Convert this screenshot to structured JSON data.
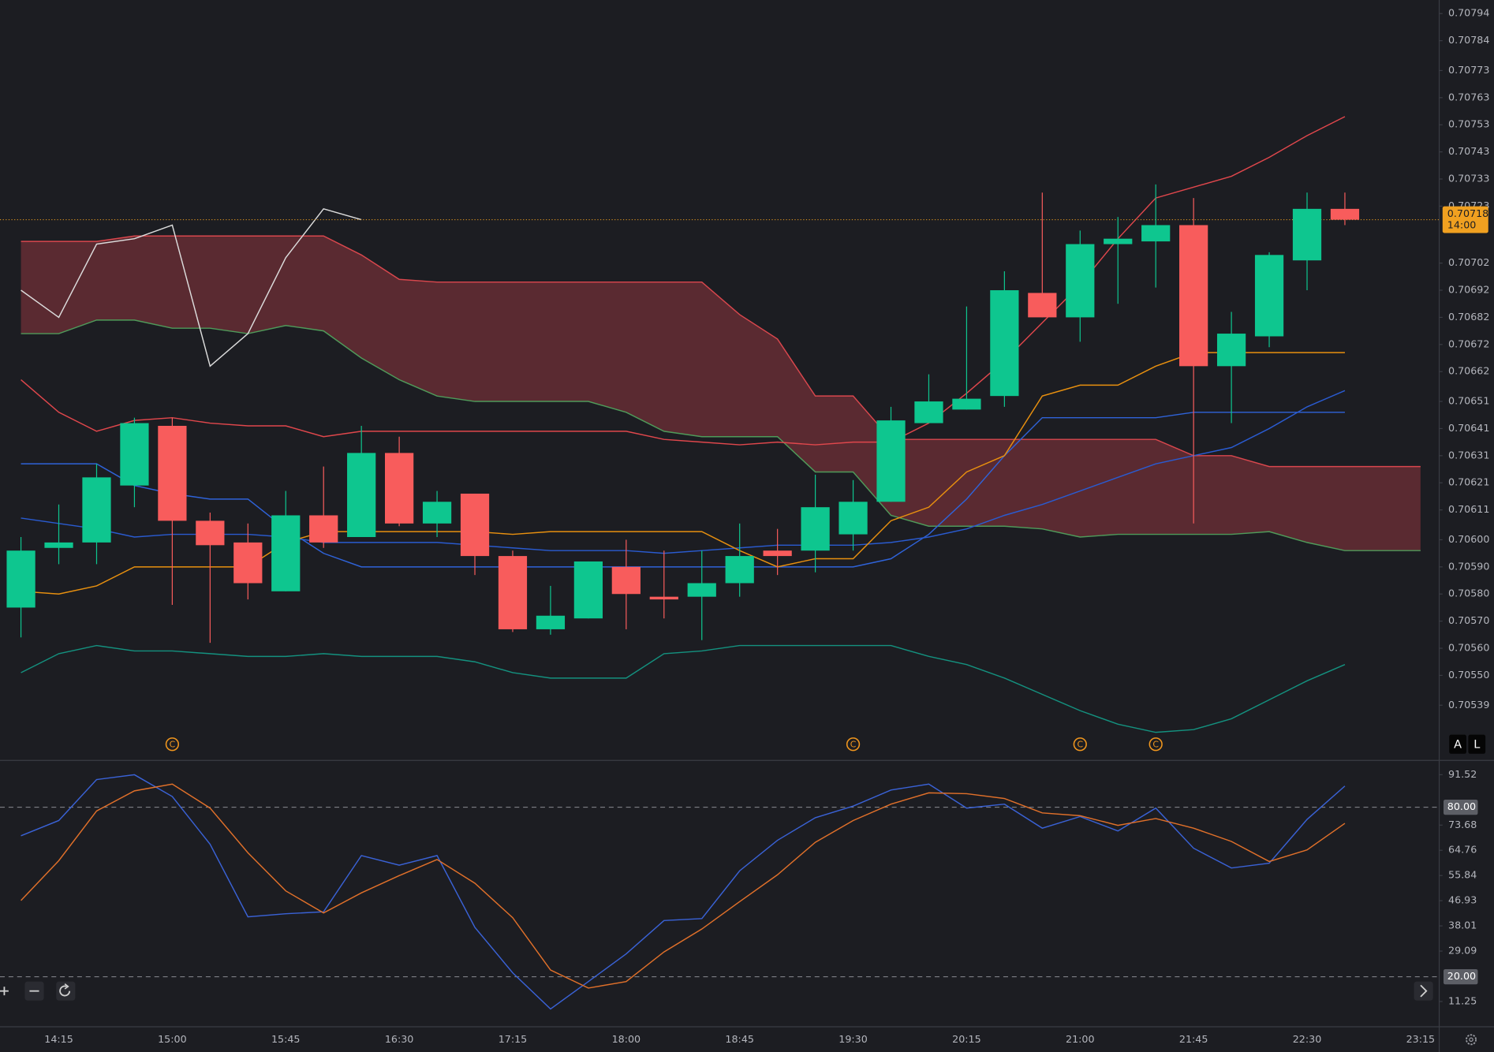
{
  "chart_data": [
    {
      "type": "candlestick",
      "categories": [
        null,
        "14:15",
        null,
        null,
        "15:00",
        null,
        null,
        "15:45",
        null,
        null,
        "16:30",
        null,
        null,
        "17:15",
        null,
        null,
        "18:00",
        null,
        null,
        "18:45",
        null,
        null,
        "19:30",
        null,
        null,
        "20:15",
        null,
        null,
        "21:00",
        null,
        null,
        "21:45",
        null,
        null,
        "22:30",
        null,
        null,
        "23:15"
      ],
      "open": [
        0.70575,
        0.70597,
        0.70599,
        0.7062,
        0.70642,
        0.70607,
        0.70599,
        0.70581,
        0.70609,
        0.70601,
        0.70632,
        0.70606,
        0.70617,
        0.70594,
        0.70567,
        0.70571,
        0.7059,
        0.70579,
        0.70579,
        0.70584,
        0.70596,
        0.70596,
        0.70602,
        0.70614,
        0.70643,
        0.70648,
        0.70653,
        0.70691,
        0.70682,
        0.70709,
        0.7071,
        0.70716,
        0.70664,
        0.70675,
        0.70703,
        0.70722,
        null,
        null
      ],
      "high": [
        0.70601,
        0.70613,
        0.70628,
        0.70645,
        0.70645,
        0.7061,
        0.70606,
        0.70618,
        0.70627,
        0.70642,
        0.70638,
        0.70618,
        0.70617,
        0.70596,
        0.70583,
        0.70592,
        0.706,
        0.70596,
        0.70596,
        0.70606,
        0.70604,
        0.70624,
        0.70622,
        0.70649,
        0.70661,
        0.70686,
        0.70699,
        0.70728,
        0.70714,
        0.70719,
        0.70731,
        0.70726,
        0.70684,
        0.70706,
        0.70728,
        0.70728,
        null,
        null
      ],
      "low": [
        0.70564,
        0.70591,
        0.70591,
        0.70612,
        0.70576,
        0.70562,
        0.70578,
        0.70581,
        0.70597,
        0.70601,
        0.70605,
        0.70601,
        0.70587,
        0.70566,
        0.70565,
        0.70571,
        0.70567,
        0.70571,
        0.70563,
        0.70579,
        0.70587,
        0.70588,
        0.70596,
        0.70614,
        0.70643,
        0.70648,
        0.70649,
        0.70682,
        0.70673,
        0.70687,
        0.70693,
        0.70606,
        0.70643,
        0.70671,
        0.70692,
        0.70716,
        null,
        null
      ],
      "close": [
        0.70596,
        0.70599,
        0.70623,
        0.70643,
        0.70607,
        0.70598,
        0.70584,
        0.70609,
        0.70599,
        0.70632,
        0.70606,
        0.70614,
        0.70594,
        0.70567,
        0.70572,
        0.70592,
        0.7058,
        0.70578,
        0.70584,
        0.70594,
        0.70594,
        0.70612,
        0.70614,
        0.70644,
        0.70651,
        0.70652,
        0.70692,
        0.70682,
        0.70709,
        0.70711,
        0.70716,
        0.70664,
        0.70676,
        0.70705,
        0.70722,
        0.70718,
        null,
        null
      ],
      "up_color": "#0ec68f",
      "down_color": "#f85c5c",
      "cloud": {
        "fill": "#5a2a31",
        "span_a": {
          "color": "#4f9a5a",
          "values": [
            0.70676,
            0.70676,
            0.70681,
            0.70681,
            0.70678,
            0.70678,
            0.70676,
            0.70679,
            0.70677,
            0.70667,
            0.70659,
            0.70653,
            0.70651,
            0.70651,
            0.70651,
            0.70651,
            0.70647,
            0.7064,
            0.70638,
            0.70638,
            0.70638,
            0.70625,
            0.70625,
            0.70609,
            0.70605,
            0.70605,
            0.70605,
            0.70604,
            0.70601,
            0.70602,
            0.70602,
            0.70602,
            0.70602,
            0.70603,
            0.70599,
            0.70596,
            0.70596,
            0.70596
          ]
        },
        "span_b": {
          "color": "#d9474d",
          "values": [
            0.7071,
            0.7071,
            0.7071,
            0.70712,
            0.70712,
            0.70712,
            0.70712,
            0.70712,
            0.70712,
            0.70705,
            0.70696,
            0.70695,
            0.70695,
            0.70695,
            0.70695,
            0.70695,
            0.70695,
            0.70695,
            0.70695,
            0.70683,
            0.70674,
            0.70653,
            0.70653,
            0.70637,
            0.70637,
            0.70637,
            0.70637,
            0.70637,
            0.70637,
            0.70637,
            0.70637,
            0.70631,
            0.70631,
            0.70627,
            0.70627,
            0.70627,
            0.70627,
            0.70627
          ]
        }
      },
      "series": [
        {
          "color": "#2f63d9",
          "values": [
            0.70628,
            0.70628,
            0.70628,
            0.7062,
            0.70617,
            0.70615,
            0.70615,
            0.70604,
            0.70595,
            0.7059,
            0.7059,
            0.7059,
            0.7059,
            0.7059,
            0.7059,
            0.7059,
            0.7059,
            0.7059,
            0.7059,
            0.7059,
            0.7059,
            0.7059,
            0.7059,
            0.70593,
            0.70602,
            0.70615,
            0.70631,
            0.70645,
            0.70645,
            0.70645,
            0.70645,
            0.70647,
            0.70647,
            0.70647,
            0.70647,
            0.70647,
            null,
            null
          ]
        },
        {
          "color": "#2a5bd0",
          "values": [
            0.70608,
            0.70606,
            0.70604,
            0.70601,
            0.70602,
            0.70602,
            0.70602,
            0.70601,
            0.70599,
            0.70599,
            0.70599,
            0.70599,
            0.70598,
            0.70597,
            0.70596,
            0.70596,
            0.70596,
            0.70595,
            0.70596,
            0.70597,
            0.70598,
            0.70598,
            0.70598,
            0.70599,
            0.70601,
            0.70604,
            0.70609,
            0.70613,
            0.70618,
            0.70623,
            0.70628,
            0.70631,
            0.70634,
            0.70641,
            0.70649,
            0.70655,
            null,
            null
          ]
        },
        {
          "color": "#e0474c",
          "values": [
            0.70659,
            0.70647,
            0.7064,
            0.70644,
            0.70645,
            0.70643,
            0.70642,
            0.70642,
            0.70638,
            0.7064,
            0.7064,
            0.7064,
            0.7064,
            0.7064,
            0.7064,
            0.7064,
            0.7064,
            0.70637,
            0.70636,
            0.70635,
            0.70636,
            0.70635,
            0.70636,
            0.70636,
            0.70643,
            0.70654,
            0.70666,
            0.7068,
            0.70694,
            0.70711,
            0.70726,
            0.7073,
            0.70734,
            0.70741,
            0.70749,
            0.70756,
            null,
            null
          ]
        },
        {
          "color": "#14917f",
          "values": [
            0.70551,
            0.70558,
            0.70561,
            0.70559,
            0.70559,
            0.70558,
            0.70557,
            0.70557,
            0.70558,
            0.70557,
            0.70557,
            0.70557,
            0.70555,
            0.70551,
            0.70549,
            0.70549,
            0.70549,
            0.70558,
            0.70559,
            0.70561,
            0.70561,
            0.70561,
            0.70561,
            0.70561,
            0.70557,
            0.70554,
            0.70549,
            0.70543,
            0.70537,
            0.70532,
            0.70529,
            0.7053,
            0.70534,
            0.70541,
            0.70548,
            0.70554,
            null,
            null
          ]
        },
        {
          "color": "#e8900f",
          "values": [
            0.70581,
            0.7058,
            0.70583,
            0.7059,
            0.7059,
            0.7059,
            0.7059,
            0.70599,
            0.70603,
            0.70603,
            0.70603,
            0.70603,
            0.70603,
            0.70602,
            0.70603,
            0.70603,
            0.70603,
            0.70603,
            0.70603,
            0.70596,
            0.7059,
            0.70593,
            0.70593,
            0.70607,
            0.70612,
            0.70625,
            0.70631,
            0.70653,
            0.70657,
            0.70657,
            0.70664,
            0.70669,
            0.70669,
            0.70669,
            0.70669,
            0.70669,
            null,
            null
          ]
        },
        {
          "color": "#dcdcdc",
          "values": [
            0.70692,
            0.70682,
            0.70709,
            0.70711,
            0.70716,
            0.70664,
            0.70676,
            0.70704,
            0.70722,
            0.70718,
            null,
            null,
            null,
            null,
            null,
            null,
            null,
            null,
            null,
            null,
            null,
            null,
            null,
            null,
            null,
            null,
            null,
            null,
            null,
            null,
            null,
            null,
            null,
            null,
            null,
            null,
            null,
            null
          ]
        }
      ],
      "ylim": [
        0.70519,
        0.70799
      ],
      "yticks": [
        0.70794,
        0.70784,
        0.70773,
        0.70763,
        0.70753,
        0.70743,
        0.70733,
        0.70723,
        0.70702,
        0.70692,
        0.70682,
        0.70672,
        0.70662,
        0.70651,
        0.70641,
        0.70631,
        0.70621,
        0.70611,
        {
          "value": 0.706,
          "label": "0.70600"
        },
        {
          "value": 0.7059,
          "label": "0.70590"
        },
        {
          "value": 0.7058,
          "label": "0.70580"
        },
        {
          "value": 0.7057,
          "label": "0.70570"
        },
        {
          "value": 0.7056,
          "label": "0.70560"
        },
        {
          "value": 0.7055,
          "label": "0.70550"
        },
        0.70539
      ],
      "last_price": {
        "value": 0.70718,
        "countdown": "14:00",
        "color": "#f0a020"
      }
    },
    {
      "type": "line",
      "series": [
        {
          "color": "#3a62d6",
          "values": [
            69.9,
            75.3,
            89.8,
            91.5,
            83.8,
            66.9,
            41.2,
            42.3,
            43.0,
            62.9,
            59.5,
            62.9,
            37.5,
            21.4,
            8.6,
            18.3,
            28.1,
            39.9,
            40.6,
            57.5,
            68.3,
            76.3,
            80.4,
            86.1,
            88.2,
            79.7,
            81.1,
            72.6,
            76.7,
            71.6,
            79.7,
            65.5,
            58.5,
            60.2,
            75.7,
            87.5
          ]
        },
        {
          "color": "#e0702a",
          "values": [
            47.0,
            61.1,
            78.7,
            85.8,
            88.2,
            79.7,
            63.9,
            50.4,
            42.6,
            49.7,
            55.8,
            61.5,
            53.1,
            40.9,
            22.4,
            16.0,
            18.3,
            28.8,
            36.9,
            46.6,
            56.1,
            67.6,
            75.3,
            81.1,
            85.1,
            84.8,
            83.1,
            78.0,
            77.0,
            73.6,
            76.0,
            72.6,
            67.9,
            60.8,
            64.9,
            74.3
          ]
        }
      ],
      "ylim": [
        2.48,
        96.24
      ],
      "yticks": [
        91.52,
        73.68,
        64.76,
        55.84,
        46.93,
        38.01,
        29.09,
        11.25
      ],
      "levels": [
        {
          "value": 80,
          "label": "80.00"
        },
        {
          "value": 20,
          "label": "20.00"
        }
      ]
    }
  ],
  "ui": {
    "scale_buttons": [
      "A",
      "L"
    ],
    "event_label": "C"
  }
}
